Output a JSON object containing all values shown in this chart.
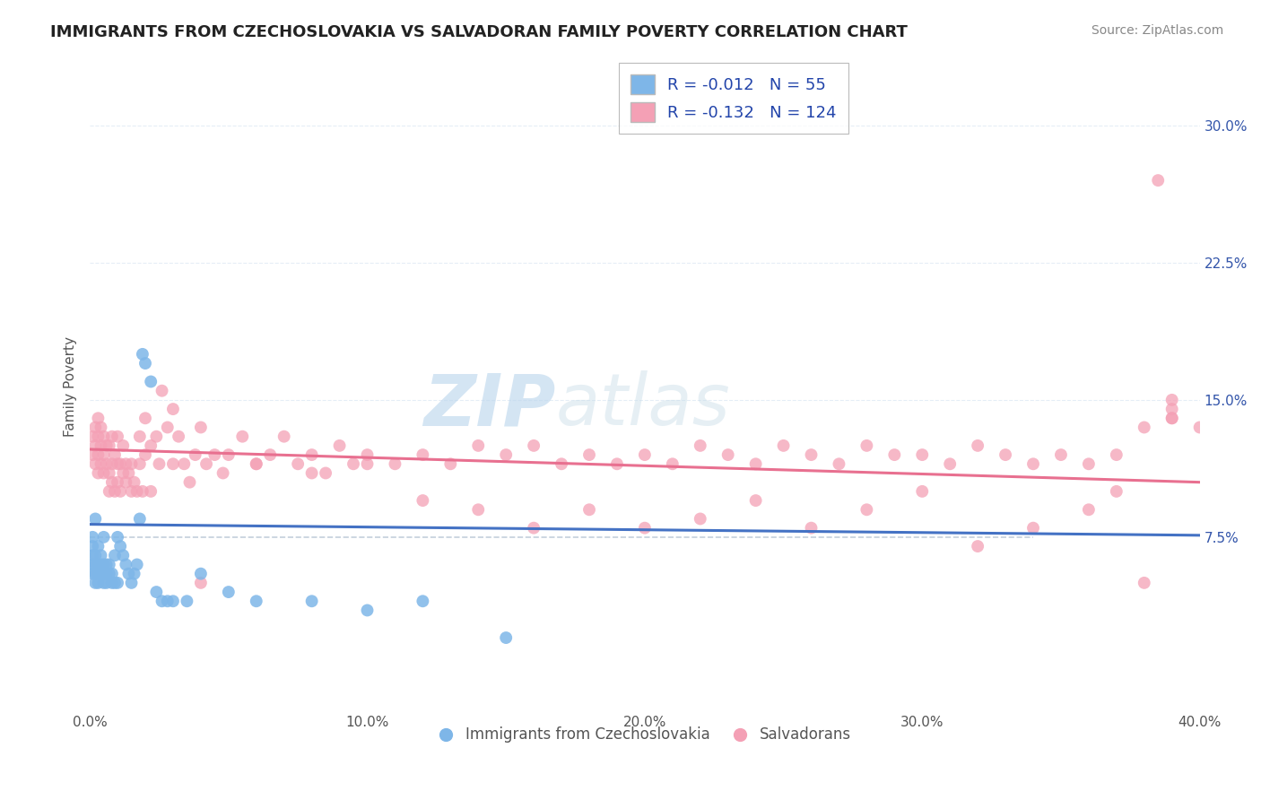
{
  "title": "IMMIGRANTS FROM CZECHOSLOVAKIA VS SALVADORAN FAMILY POVERTY CORRELATION CHART",
  "source_text": "Source: ZipAtlas.com",
  "xlabel_blue": "Immigrants from Czechoslovakia",
  "xlabel_pink": "Salvadorans",
  "ylabel": "Family Poverty",
  "R_blue": -0.012,
  "N_blue": 55,
  "R_pink": -0.132,
  "N_pink": 124,
  "xlim": [
    0.0,
    0.4
  ],
  "ylim": [
    -0.02,
    0.335
  ],
  "yticks": [
    0.075,
    0.15,
    0.225,
    0.3
  ],
  "ytick_labels": [
    "7.5%",
    "15.0%",
    "22.5%",
    "30.0%"
  ],
  "xticks": [
    0.0,
    0.1,
    0.2,
    0.3,
    0.4
  ],
  "xtick_labels": [
    "0.0%",
    "10.0%",
    "20.0%",
    "30.0%",
    "40.0%"
  ],
  "color_blue": "#7EB6E8",
  "color_pink": "#F4A0B5",
  "color_blue_dark": "#4472C4",
  "color_pink_dark": "#E87090",
  "watermark": "ZIPAtlas",
  "blue_trend_start": 0.082,
  "blue_trend_end": 0.076,
  "pink_trend_start": 0.123,
  "pink_trend_end": 0.105,
  "hline_y": 0.075,
  "blue_scatter_x": [
    0.001,
    0.001,
    0.001,
    0.001,
    0.001,
    0.002,
    0.002,
    0.002,
    0.002,
    0.002,
    0.003,
    0.003,
    0.003,
    0.003,
    0.004,
    0.004,
    0.004,
    0.005,
    0.005,
    0.005,
    0.005,
    0.006,
    0.006,
    0.006,
    0.007,
    0.007,
    0.008,
    0.008,
    0.009,
    0.009,
    0.01,
    0.01,
    0.011,
    0.012,
    0.013,
    0.014,
    0.015,
    0.016,
    0.017,
    0.018,
    0.019,
    0.02,
    0.022,
    0.024,
    0.026,
    0.028,
    0.03,
    0.035,
    0.04,
    0.05,
    0.06,
    0.08,
    0.1,
    0.12,
    0.15
  ],
  "blue_scatter_y": [
    0.055,
    0.06,
    0.065,
    0.07,
    0.075,
    0.05,
    0.055,
    0.06,
    0.065,
    0.085,
    0.05,
    0.055,
    0.06,
    0.07,
    0.055,
    0.06,
    0.065,
    0.05,
    0.055,
    0.06,
    0.075,
    0.05,
    0.055,
    0.06,
    0.055,
    0.06,
    0.05,
    0.055,
    0.05,
    0.065,
    0.05,
    0.075,
    0.07,
    0.065,
    0.06,
    0.055,
    0.05,
    0.055,
    0.06,
    0.085,
    0.175,
    0.17,
    0.16,
    0.045,
    0.04,
    0.04,
    0.04,
    0.04,
    0.055,
    0.045,
    0.04,
    0.04,
    0.035,
    0.04,
    0.02
  ],
  "pink_scatter_x": [
    0.001,
    0.001,
    0.002,
    0.002,
    0.002,
    0.003,
    0.003,
    0.003,
    0.003,
    0.004,
    0.004,
    0.004,
    0.005,
    0.005,
    0.005,
    0.006,
    0.006,
    0.007,
    0.007,
    0.007,
    0.008,
    0.008,
    0.008,
    0.009,
    0.009,
    0.01,
    0.01,
    0.01,
    0.011,
    0.011,
    0.012,
    0.012,
    0.013,
    0.013,
    0.014,
    0.015,
    0.015,
    0.016,
    0.017,
    0.018,
    0.018,
    0.019,
    0.02,
    0.02,
    0.022,
    0.022,
    0.024,
    0.025,
    0.026,
    0.028,
    0.03,
    0.03,
    0.032,
    0.034,
    0.036,
    0.038,
    0.04,
    0.042,
    0.045,
    0.048,
    0.05,
    0.055,
    0.06,
    0.065,
    0.07,
    0.075,
    0.08,
    0.085,
    0.09,
    0.095,
    0.1,
    0.11,
    0.12,
    0.13,
    0.14,
    0.15,
    0.16,
    0.17,
    0.18,
    0.19,
    0.2,
    0.21,
    0.22,
    0.23,
    0.24,
    0.25,
    0.26,
    0.27,
    0.28,
    0.29,
    0.3,
    0.31,
    0.32,
    0.33,
    0.34,
    0.35,
    0.36,
    0.37,
    0.38,
    0.385,
    0.39,
    0.39,
    0.39,
    0.4,
    0.39,
    0.38,
    0.37,
    0.36,
    0.34,
    0.32,
    0.3,
    0.28,
    0.26,
    0.24,
    0.22,
    0.2,
    0.18,
    0.16,
    0.14,
    0.12,
    0.1,
    0.08,
    0.06,
    0.04
  ],
  "pink_scatter_y": [
    0.12,
    0.13,
    0.115,
    0.125,
    0.135,
    0.11,
    0.12,
    0.13,
    0.14,
    0.115,
    0.125,
    0.135,
    0.11,
    0.12,
    0.13,
    0.115,
    0.125,
    0.1,
    0.11,
    0.125,
    0.105,
    0.115,
    0.13,
    0.1,
    0.12,
    0.105,
    0.115,
    0.13,
    0.1,
    0.115,
    0.11,
    0.125,
    0.105,
    0.115,
    0.11,
    0.1,
    0.115,
    0.105,
    0.1,
    0.13,
    0.115,
    0.1,
    0.12,
    0.14,
    0.125,
    0.1,
    0.13,
    0.115,
    0.155,
    0.135,
    0.115,
    0.145,
    0.13,
    0.115,
    0.105,
    0.12,
    0.135,
    0.115,
    0.12,
    0.11,
    0.12,
    0.13,
    0.115,
    0.12,
    0.13,
    0.115,
    0.12,
    0.11,
    0.125,
    0.115,
    0.12,
    0.115,
    0.12,
    0.115,
    0.125,
    0.12,
    0.125,
    0.115,
    0.12,
    0.115,
    0.12,
    0.115,
    0.125,
    0.12,
    0.115,
    0.125,
    0.12,
    0.115,
    0.125,
    0.12,
    0.12,
    0.115,
    0.125,
    0.12,
    0.115,
    0.12,
    0.115,
    0.12,
    0.05,
    0.27,
    0.15,
    0.145,
    0.14,
    0.135,
    0.14,
    0.135,
    0.1,
    0.09,
    0.08,
    0.07,
    0.1,
    0.09,
    0.08,
    0.095,
    0.085,
    0.08,
    0.09,
    0.08,
    0.09,
    0.095,
    0.115,
    0.11,
    0.115,
    0.05
  ]
}
